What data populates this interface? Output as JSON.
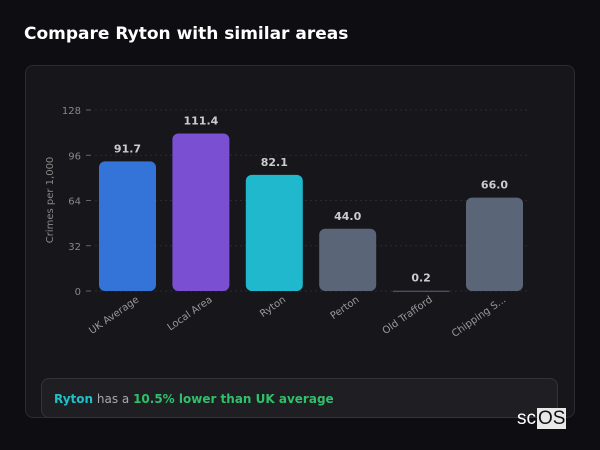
{
  "title": "Compare Ryton with similar areas",
  "chart_data": {
    "type": "bar",
    "categories": [
      "UK Average",
      "Local Area",
      "Ryton",
      "Perton",
      "Old Trafford",
      "Chipping S..."
    ],
    "values": [
      91.7,
      111.4,
      82.1,
      44.0,
      0.2,
      66.0
    ],
    "value_labels": [
      "91.7",
      "111.4",
      "82.1",
      "44.0",
      "0.2",
      "66.0"
    ],
    "colors": [
      "#3474d8",
      "#7b4fd2",
      "#20b8cc",
      "#5a6678",
      "#5a6678",
      "#5a6678"
    ],
    "ylabel": "Crimes per 1,000",
    "yticks": [
      0,
      32,
      64,
      96,
      128
    ],
    "ylim": [
      0,
      128
    ],
    "grid": true
  },
  "summary": {
    "area": "Ryton",
    "middle": " has a ",
    "comparison": "10.5% lower than UK average"
  },
  "logo": {
    "prefix": "sc",
    "suffix": "OS"
  }
}
